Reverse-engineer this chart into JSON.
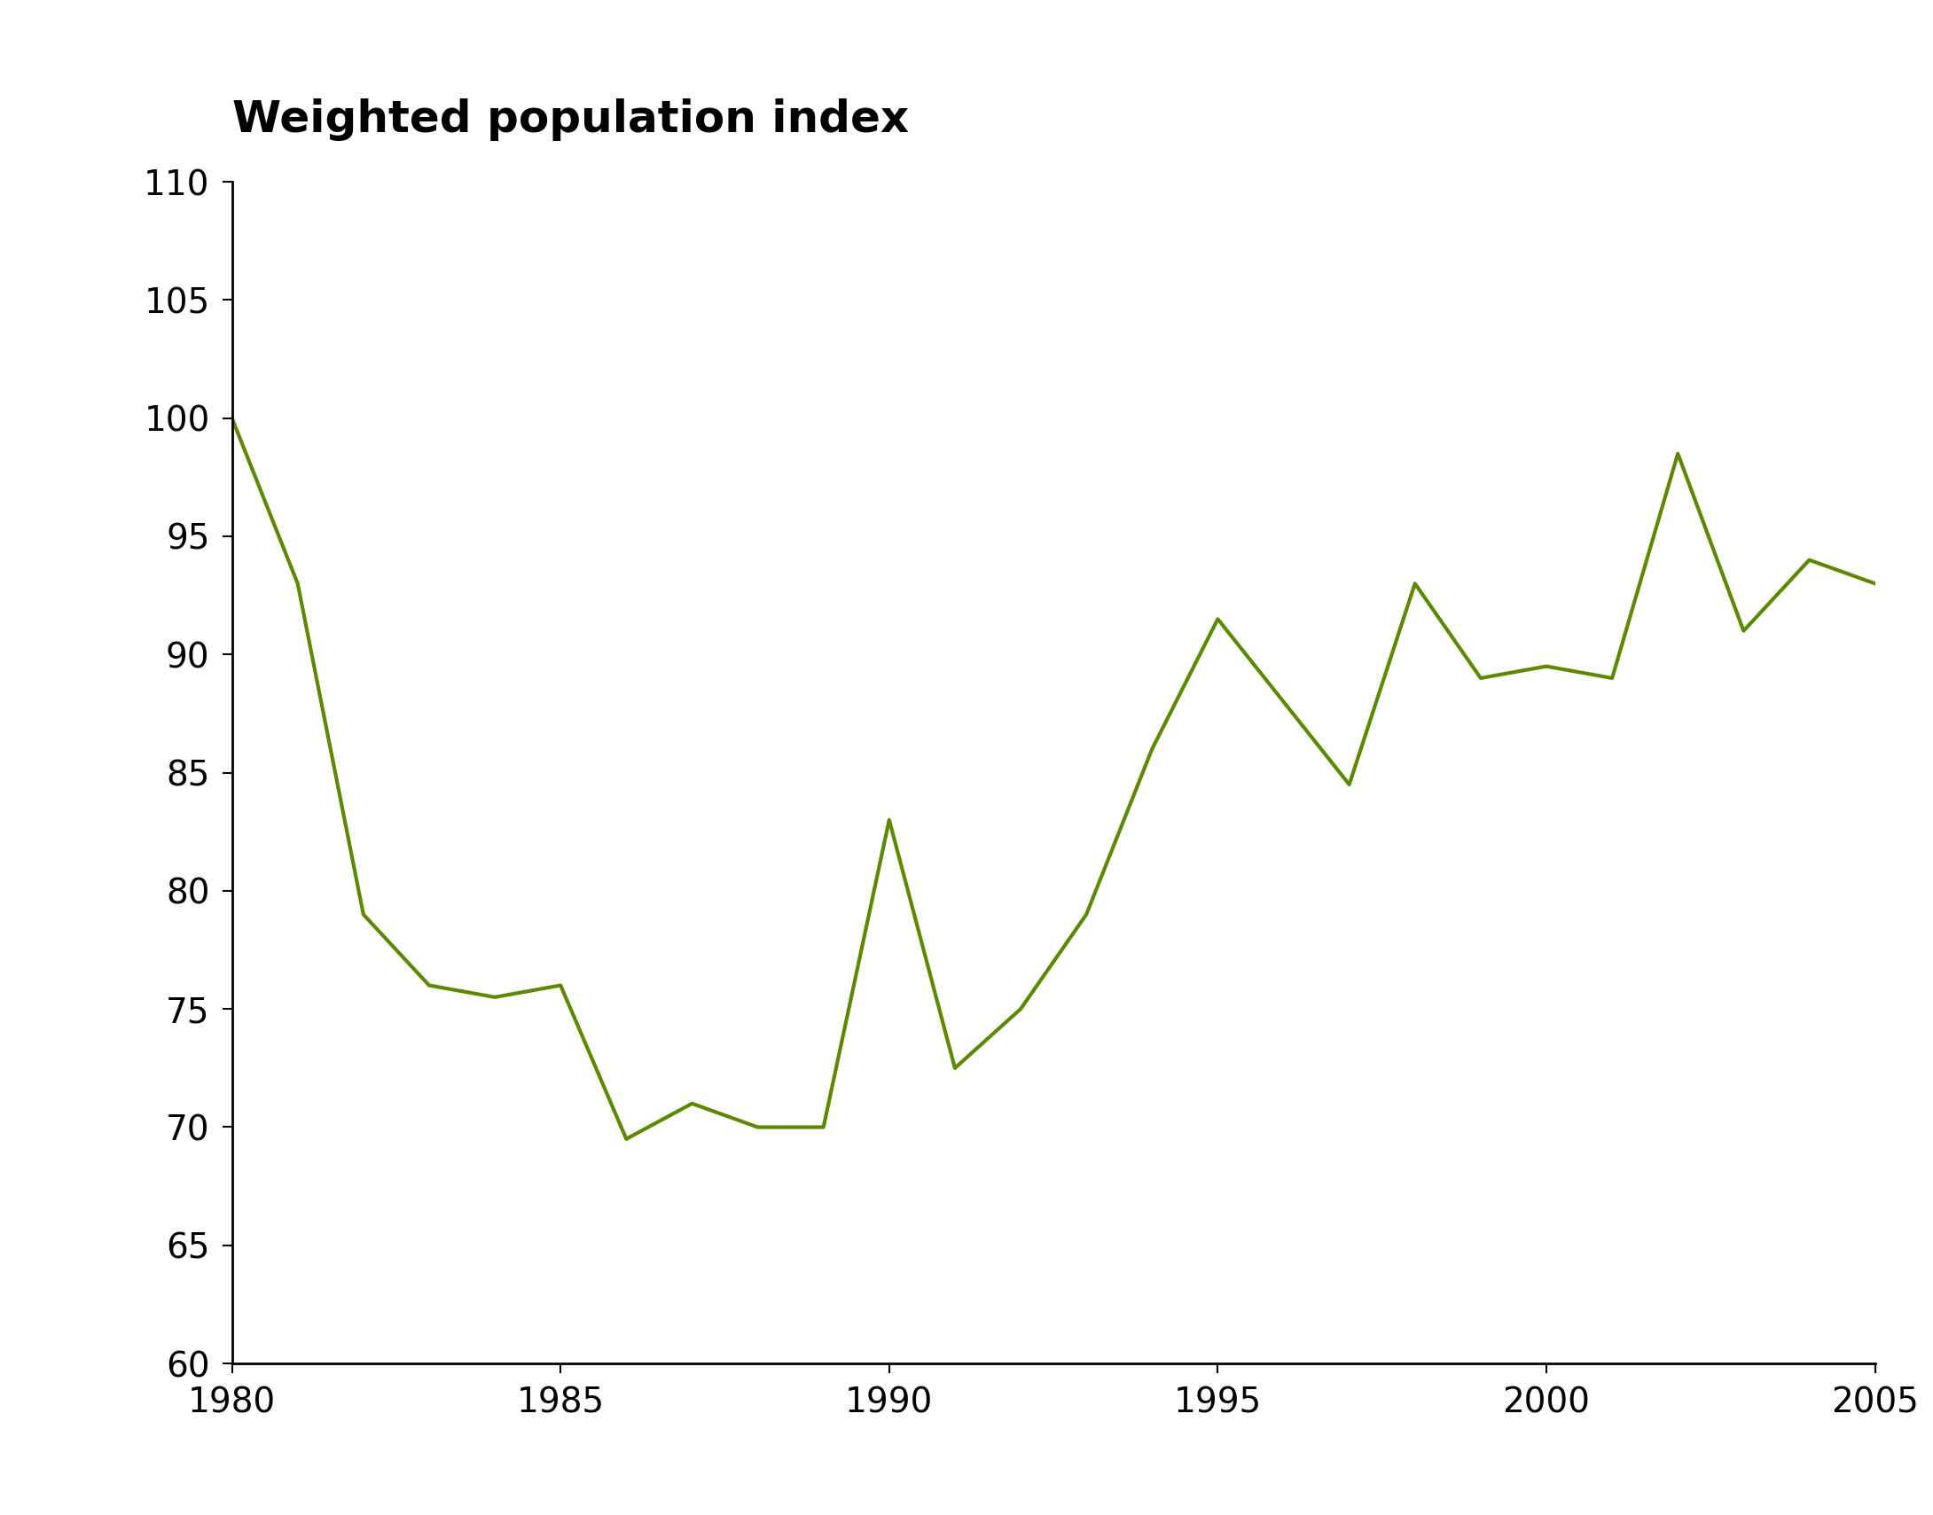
{
  "title": "Weighted population index",
  "line_color": "#5a8a00",
  "line_width": 3.0,
  "background_color": "#ffffff",
  "xlim": [
    1980,
    2005
  ],
  "ylim": [
    60,
    110
  ],
  "xticks": [
    1980,
    1985,
    1990,
    1995,
    2000,
    2005
  ],
  "yticks": [
    60,
    65,
    70,
    75,
    80,
    85,
    90,
    95,
    100,
    105,
    110
  ],
  "title_fontsize": 36,
  "tick_fontsize": 28,
  "years": [
    1980,
    1981,
    1982,
    1983,
    1984,
    1985,
    1986,
    1987,
    1988,
    1989,
    1990,
    1991,
    1992,
    1993,
    1994,
    1995,
    1996,
    1997,
    1998,
    1999,
    2000,
    2001,
    2002,
    2003,
    2004,
    2005
  ],
  "values": [
    100,
    93,
    79,
    76,
    75.5,
    76,
    69.5,
    71,
    70,
    70,
    83,
    72.5,
    75,
    79,
    86,
    91.5,
    88,
    84.5,
    93,
    89,
    89.5,
    89,
    98.5,
    91,
    94,
    93
  ]
}
